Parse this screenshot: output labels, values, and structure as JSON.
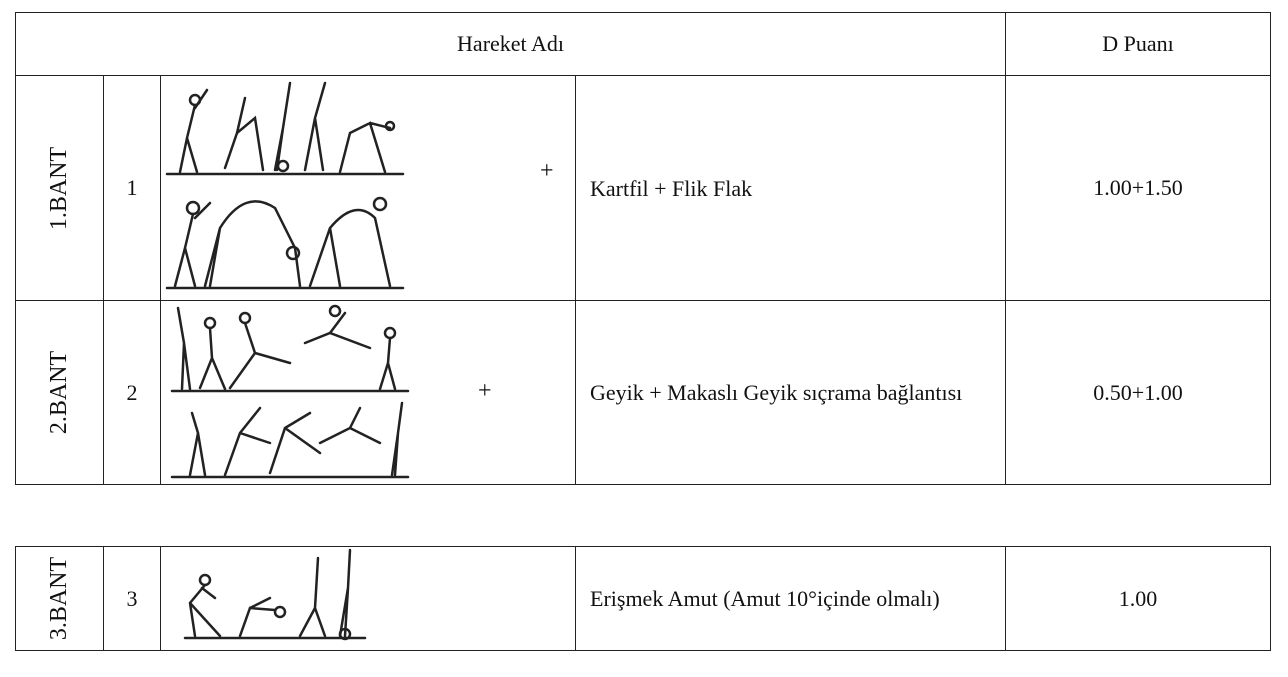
{
  "table": {
    "header": [
      "Hareket Adı",
      "D Puanı"
    ],
    "rows": [
      {
        "band": "1.BANT",
        "no": "1",
        "plus": "+",
        "name": "Kartfil + Flik Flak",
        "score": "1.00+1.50"
      },
      {
        "band": "2.BANT",
        "no": "2",
        "plus": "+",
        "name": "Geyik + Makaslı Geyik sıçrama bağlantısı",
        "score": "0.50+1.00"
      },
      {
        "band": "3.BANT",
        "no": "3",
        "name": "Erişmek Amut (Amut 10°içinde olmalı)",
        "score": "1.00"
      }
    ]
  }
}
